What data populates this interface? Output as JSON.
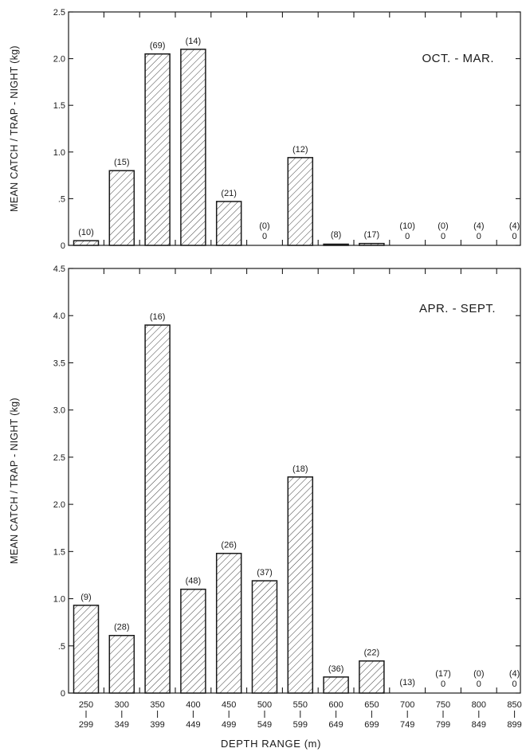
{
  "chart_data": [
    {
      "type": "bar",
      "title": "OCT. - MAR.",
      "ylabel": "MEAN CATCH / TRAP - NIGHT (kg)",
      "xlabel": "",
      "ylim": [
        0,
        2.5
      ],
      "yticks": [
        "0",
        ".5",
        "1.0",
        "1.5",
        "2.0",
        "2.5"
      ],
      "categories": [
        [
          "250",
          "299"
        ],
        [
          "300",
          "349"
        ],
        [
          "350",
          "399"
        ],
        [
          "400",
          "449"
        ],
        [
          "450",
          "499"
        ],
        [
          "500",
          "549"
        ],
        [
          "550",
          "599"
        ],
        [
          "600",
          "649"
        ],
        [
          "650",
          "699"
        ],
        [
          "700",
          "749"
        ],
        [
          "750",
          "799"
        ],
        [
          "800",
          "849"
        ],
        [
          "850",
          "899"
        ]
      ],
      "values": [
        0.05,
        0.8,
        2.05,
        2.1,
        0.47,
        0,
        0.94,
        0.01,
        0.02,
        0,
        0,
        0,
        0
      ],
      "counts": [
        "(10)",
        "(15)",
        "(69)",
        "(14)",
        "(21)",
        "(0)",
        "(12)",
        "(8)",
        "(17)",
        "(10)",
        "(0)",
        "(4)",
        "(4)"
      ],
      "zero_labels": [
        "",
        "",
        "",
        "",
        "",
        "0",
        "",
        "",
        "",
        "0",
        "0",
        "0",
        "0"
      ],
      "grid": false,
      "fill": "hatched"
    },
    {
      "type": "bar",
      "title": "APR. - SEPT.",
      "ylabel": "MEAN CATCH / TRAP - NIGHT (kg)",
      "xlabel": "DEPTH RANGE (m)",
      "ylim": [
        0,
        4.5
      ],
      "yticks": [
        "0",
        ".5",
        "1.0",
        "1.5",
        "2.0",
        "2.5",
        "3.0",
        "3.5",
        "4.0",
        "4.5"
      ],
      "categories": [
        [
          "250",
          "299"
        ],
        [
          "300",
          "349"
        ],
        [
          "350",
          "399"
        ],
        [
          "400",
          "449"
        ],
        [
          "450",
          "499"
        ],
        [
          "500",
          "549"
        ],
        [
          "550",
          "599"
        ],
        [
          "600",
          "649"
        ],
        [
          "650",
          "699"
        ],
        [
          "700",
          "749"
        ],
        [
          "750",
          "799"
        ],
        [
          "800",
          "849"
        ],
        [
          "850",
          "899"
        ]
      ],
      "values": [
        0.93,
        0.61,
        3.9,
        1.1,
        1.48,
        1.19,
        2.29,
        0.17,
        0.34,
        0,
        0,
        0,
        0
      ],
      "counts": [
        "(9)",
        "(28)",
        "(16)",
        "(48)",
        "(26)",
        "(37)",
        "(18)",
        "(36)",
        "(22)",
        "(13)",
        "(17)",
        "(0)",
        "(4)"
      ],
      "zero_labels": [
        "",
        "",
        "",
        "",
        "",
        "",
        "",
        "",
        "",
        "",
        "0",
        "0",
        "0"
      ],
      "grid": false,
      "fill": "hatched"
    }
  ]
}
